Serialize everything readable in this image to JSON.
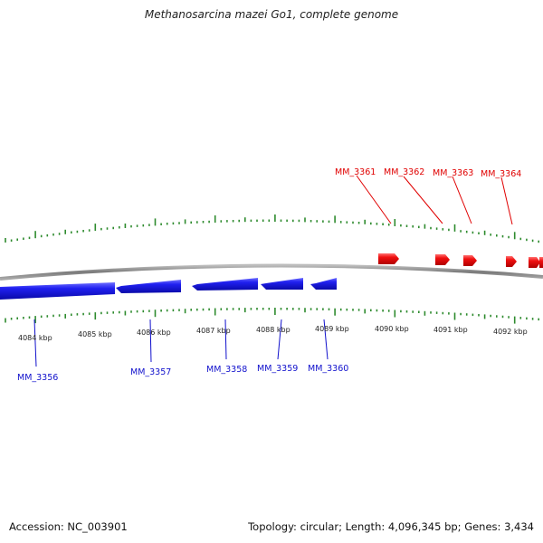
{
  "title": "Methanosarcina mazei Go1, complete genome",
  "footer": {
    "accession": "Accession: NC_003901",
    "summary": "Topology: circular; Length: 4,096,345 bp; Genes: 3,434"
  },
  "colors": {
    "forward_gene": "#ee0000",
    "reverse_gene": "#1a1aee",
    "backbone": "#8c8c8c",
    "ticks": "#2e8b2e"
  },
  "scale": {
    "ticks": [
      {
        "label": "4084 kbp"
      },
      {
        "label": "4085 kbp"
      },
      {
        "label": "4086 kbp"
      },
      {
        "label": "4087 kbp"
      },
      {
        "label": "4088 kbp"
      },
      {
        "label": "4089 kbp"
      },
      {
        "label": "4090 kbp"
      },
      {
        "label": "4091 kbp"
      },
      {
        "label": "4092 kbp"
      }
    ]
  },
  "genes_forward": [
    {
      "name": "MM_3361"
    },
    {
      "name": "MM_3362"
    },
    {
      "name": "MM_3363"
    },
    {
      "name": "MM_3364"
    }
  ],
  "genes_reverse": [
    {
      "name": "MM_3356"
    },
    {
      "name": "MM_3357"
    },
    {
      "name": "MM_3358"
    },
    {
      "name": "MM_3359"
    },
    {
      "name": "MM_3360"
    }
  ]
}
